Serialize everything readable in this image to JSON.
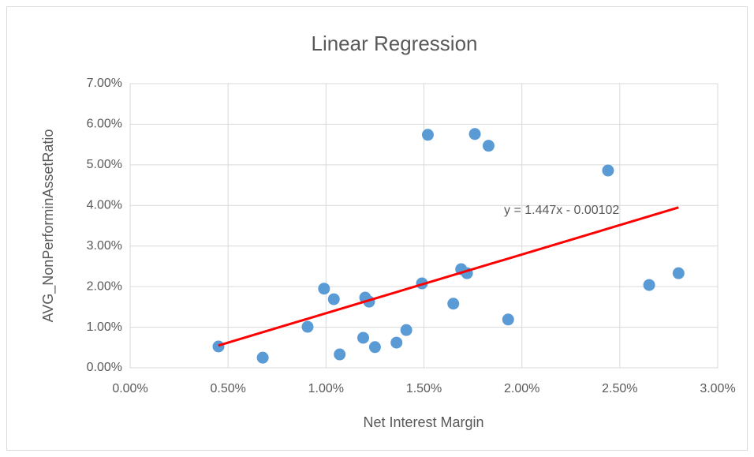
{
  "chart_data": {
    "type": "scatter",
    "title": "Linear Regression",
    "x_label": "Net Interest Margin",
    "y_label": "AVG_NonPerforminAssetRatio",
    "annotation": "y = 1.447x - 0.00102",
    "color": "#5b9bd5",
    "x": [
      0.451,
      0.677,
      0.906,
      0.99,
      1.04,
      1.07,
      1.19,
      1.2,
      1.22,
      1.25,
      1.36,
      1.41,
      1.49,
      1.52,
      1.65,
      1.69,
      1.72,
      1.76,
      1.83,
      1.93,
      2.44,
      2.65,
      2.8
    ],
    "values": [
      0.525,
      0.25,
      1.01,
      1.95,
      1.69,
      0.33,
      0.74,
      1.73,
      1.63,
      0.51,
      0.62,
      0.93,
      2.08,
      5.74,
      1.58,
      2.43,
      2.33,
      5.76,
      5.47,
      1.19,
      4.86,
      2.04,
      2.33
    ],
    "trendline": {
      "color": "#ff0000",
      "x": [
        0.45,
        2.8
      ],
      "values": [
        0.549,
        3.95
      ]
    },
    "xlim": [
      0,
      3
    ],
    "ylim": [
      0,
      7
    ],
    "grid": true,
    "xticks": [
      {
        "value": 0,
        "label": "0.00%"
      },
      {
        "value": 0.5,
        "label": "0.50%"
      },
      {
        "value": 1,
        "label": "1.00%"
      },
      {
        "value": 1.5,
        "label": "1.50%"
      },
      {
        "value": 2,
        "label": "2.00%"
      },
      {
        "value": 2.5,
        "label": "2.50%"
      },
      {
        "value": 3,
        "label": "3.00%"
      }
    ],
    "yticks": [
      {
        "value": 0,
        "label": "0.00%"
      },
      {
        "value": 1,
        "label": "1.00%"
      },
      {
        "value": 2,
        "label": "2.00%"
      },
      {
        "value": 3,
        "label": "3.00%"
      },
      {
        "value": 4,
        "label": "4.00%"
      },
      {
        "value": 5,
        "label": "5.00%"
      },
      {
        "value": 6,
        "label": "6.00%"
      },
      {
        "value": 7,
        "label": "7.00%"
      }
    ]
  }
}
